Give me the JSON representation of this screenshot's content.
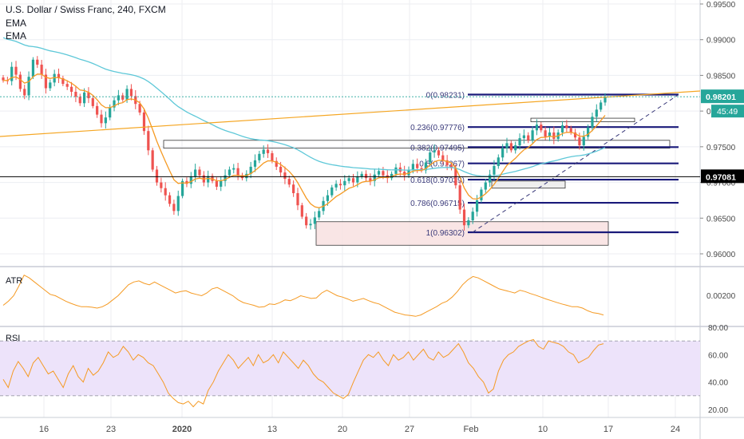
{
  "header": {
    "title": "U.S. Dollar / Swiss Franc, 240, FXCM",
    "indicator1": "EMA",
    "indicator2": "EMA"
  },
  "panes": {
    "atr_label": "ATR",
    "rsi_label": "RSI"
  },
  "colors": {
    "bull": "#26a69a",
    "bear": "#ef5350",
    "ema_fast": "#f59a23",
    "ema_slow": "#5ec8d8",
    "fib_line": "#1a1a7a",
    "trendline": "#f5a623",
    "grid": "#eceef2",
    "rsi_band": "#ede3fa"
  },
  "chart_data": [
    {
      "type": "candlestick",
      "title": "U.S. Dollar / Swiss Franc, 240, FXCM",
      "series_names": [
        "EMA",
        "EMA"
      ],
      "y_ticks": [
        "0.99500",
        "0.99000",
        "0.98500",
        "0.98000",
        "0.97500",
        "0.97000",
        "0.96500",
        "0.96000"
      ],
      "ylim": [
        0.9578,
        0.9965
      ],
      "x_ticks": [
        "16",
        "23",
        "2020",
        "13",
        "20",
        "27",
        "Feb",
        "10",
        "17",
        "24"
      ],
      "last_price": "0.98201",
      "countdown": "45:49",
      "crosshair_price": "0.97081",
      "fib_levels": [
        {
          "label": "0(0.98231)",
          "value": 0.98231
        },
        {
          "label": "0.236(0.97776)",
          "value": 0.97776
        },
        {
          "label": "0.382(0.97495)",
          "value": 0.97495
        },
        {
          "label": "0.5(0.97267)",
          "value": 0.97267
        },
        {
          "label": "0.618(0.97039)",
          "value": 0.97039
        },
        {
          "label": "0.786(0.96715)",
          "value": 0.96715
        },
        {
          "label": "1(0.96302)",
          "value": 0.96302
        }
      ],
      "close": [
        0.9843,
        0.9842,
        0.9862,
        0.9851,
        0.9831,
        0.9822,
        0.9848,
        0.9872,
        0.9865,
        0.9851,
        0.9832,
        0.984,
        0.9852,
        0.9846,
        0.9838,
        0.9834,
        0.9827,
        0.982,
        0.9811,
        0.9826,
        0.9818,
        0.9807,
        0.9795,
        0.9783,
        0.9791,
        0.9805,
        0.9815,
        0.9822,
        0.9816,
        0.9831,
        0.9821,
        0.981,
        0.9798,
        0.9772,
        0.9745,
        0.9718,
        0.97,
        0.9692,
        0.9682,
        0.967,
        0.966,
        0.9681,
        0.9702,
        0.9698,
        0.9708,
        0.9718,
        0.971,
        0.97,
        0.9709,
        0.9702,
        0.9694,
        0.9702,
        0.971,
        0.9718,
        0.972,
        0.971,
        0.9706,
        0.9712,
        0.9722,
        0.9731,
        0.974,
        0.9746,
        0.9741,
        0.973,
        0.9722,
        0.9714,
        0.9705,
        0.9697,
        0.9685,
        0.9668,
        0.9652,
        0.964,
        0.9642,
        0.9651,
        0.966,
        0.9674,
        0.9682,
        0.9693,
        0.9698,
        0.9696,
        0.9702,
        0.9706,
        0.97,
        0.9708,
        0.9712,
        0.9706,
        0.9702,
        0.9711,
        0.9716,
        0.971,
        0.9706,
        0.9712,
        0.9721,
        0.9715,
        0.971,
        0.9718,
        0.9726,
        0.972,
        0.9717,
        0.9728,
        0.9742,
        0.9745,
        0.9738,
        0.9731,
        0.9724,
        0.972,
        0.9696,
        0.9662,
        0.964,
        0.9647,
        0.9659,
        0.9675,
        0.969,
        0.97,
        0.9711,
        0.9723,
        0.9735,
        0.9748,
        0.9755,
        0.9745,
        0.9752,
        0.9762,
        0.9766,
        0.9759,
        0.9773,
        0.9781,
        0.9773,
        0.9764,
        0.977,
        0.9761,
        0.977,
        0.978,
        0.9776,
        0.977,
        0.9763,
        0.9752,
        0.9764,
        0.9777,
        0.9792,
        0.9802,
        0.9812,
        0.982
      ],
      "atr": [
        0.00155,
        0.0017,
        0.0019,
        0.00225,
        0.00265,
        0.00255,
        0.0024,
        0.00225,
        0.0021,
        0.00195,
        0.0019,
        0.0018,
        0.0017,
        0.00162,
        0.00155,
        0.0015,
        0.0015,
        0.00148,
        0.00145,
        0.0015,
        0.0016,
        0.00175,
        0.0019,
        0.0021,
        0.0023,
        0.0024,
        0.00244,
        0.00235,
        0.0023,
        0.0024,
        0.0023,
        0.0022,
        0.0021,
        0.002,
        0.00205,
        0.00208,
        0.002,
        0.00195,
        0.0019,
        0.002,
        0.00215,
        0.0022,
        0.0021,
        0.002,
        0.0019,
        0.00175,
        0.00165,
        0.0016,
        0.00155,
        0.00148,
        0.0015,
        0.0016,
        0.00158,
        0.00165,
        0.00175,
        0.00172,
        0.0018,
        0.0019,
        0.00185,
        0.0018,
        0.00182,
        0.002,
        0.0021,
        0.002,
        0.0019,
        0.00185,
        0.00178,
        0.0017,
        0.00175,
        0.0018,
        0.00172,
        0.00165,
        0.0016,
        0.0015,
        0.0014,
        0.0013,
        0.00125,
        0.0012,
        0.00118,
        0.00115,
        0.0012,
        0.0013,
        0.0014,
        0.0015,
        0.00162,
        0.0017,
        0.00185,
        0.00205,
        0.0023,
        0.00248,
        0.0026,
        0.00255,
        0.00245,
        0.00235,
        0.00225,
        0.00215,
        0.0021,
        0.00205,
        0.002,
        0.0021,
        0.00205,
        0.00198,
        0.00192,
        0.00185,
        0.00178,
        0.00172,
        0.00166,
        0.0016,
        0.00155,
        0.0015,
        0.0015,
        0.00145,
        0.00135,
        0.00128,
        0.00125,
        0.0012
      ],
      "rsi": [
        42,
        36,
        48,
        55,
        50,
        44,
        54,
        58,
        52,
        46,
        48,
        42,
        36,
        46,
        52,
        44,
        40,
        50,
        45,
        48,
        54,
        62,
        58,
        60,
        66,
        62,
        56,
        60,
        58,
        54,
        52,
        46,
        40,
        32,
        28,
        25,
        24,
        26,
        22,
        26,
        24,
        34,
        40,
        48,
        54,
        60,
        56,
        50,
        54,
        58,
        52,
        60,
        54,
        56,
        60,
        54,
        62,
        58,
        54,
        50,
        56,
        52,
        46,
        42,
        40,
        36,
        32,
        30,
        28,
        31,
        40,
        48,
        56,
        60,
        58,
        62,
        56,
        52,
        60,
        56,
        58,
        62,
        56,
        60,
        64,
        58,
        56,
        62,
        58,
        60,
        64,
        68,
        62,
        54,
        50,
        44,
        40,
        32,
        35,
        48,
        56,
        60,
        62,
        66,
        68,
        70,
        71,
        66,
        64,
        70,
        69,
        68,
        66,
        62,
        60,
        54,
        56,
        58,
        63,
        67,
        68
      ]
    }
  ]
}
